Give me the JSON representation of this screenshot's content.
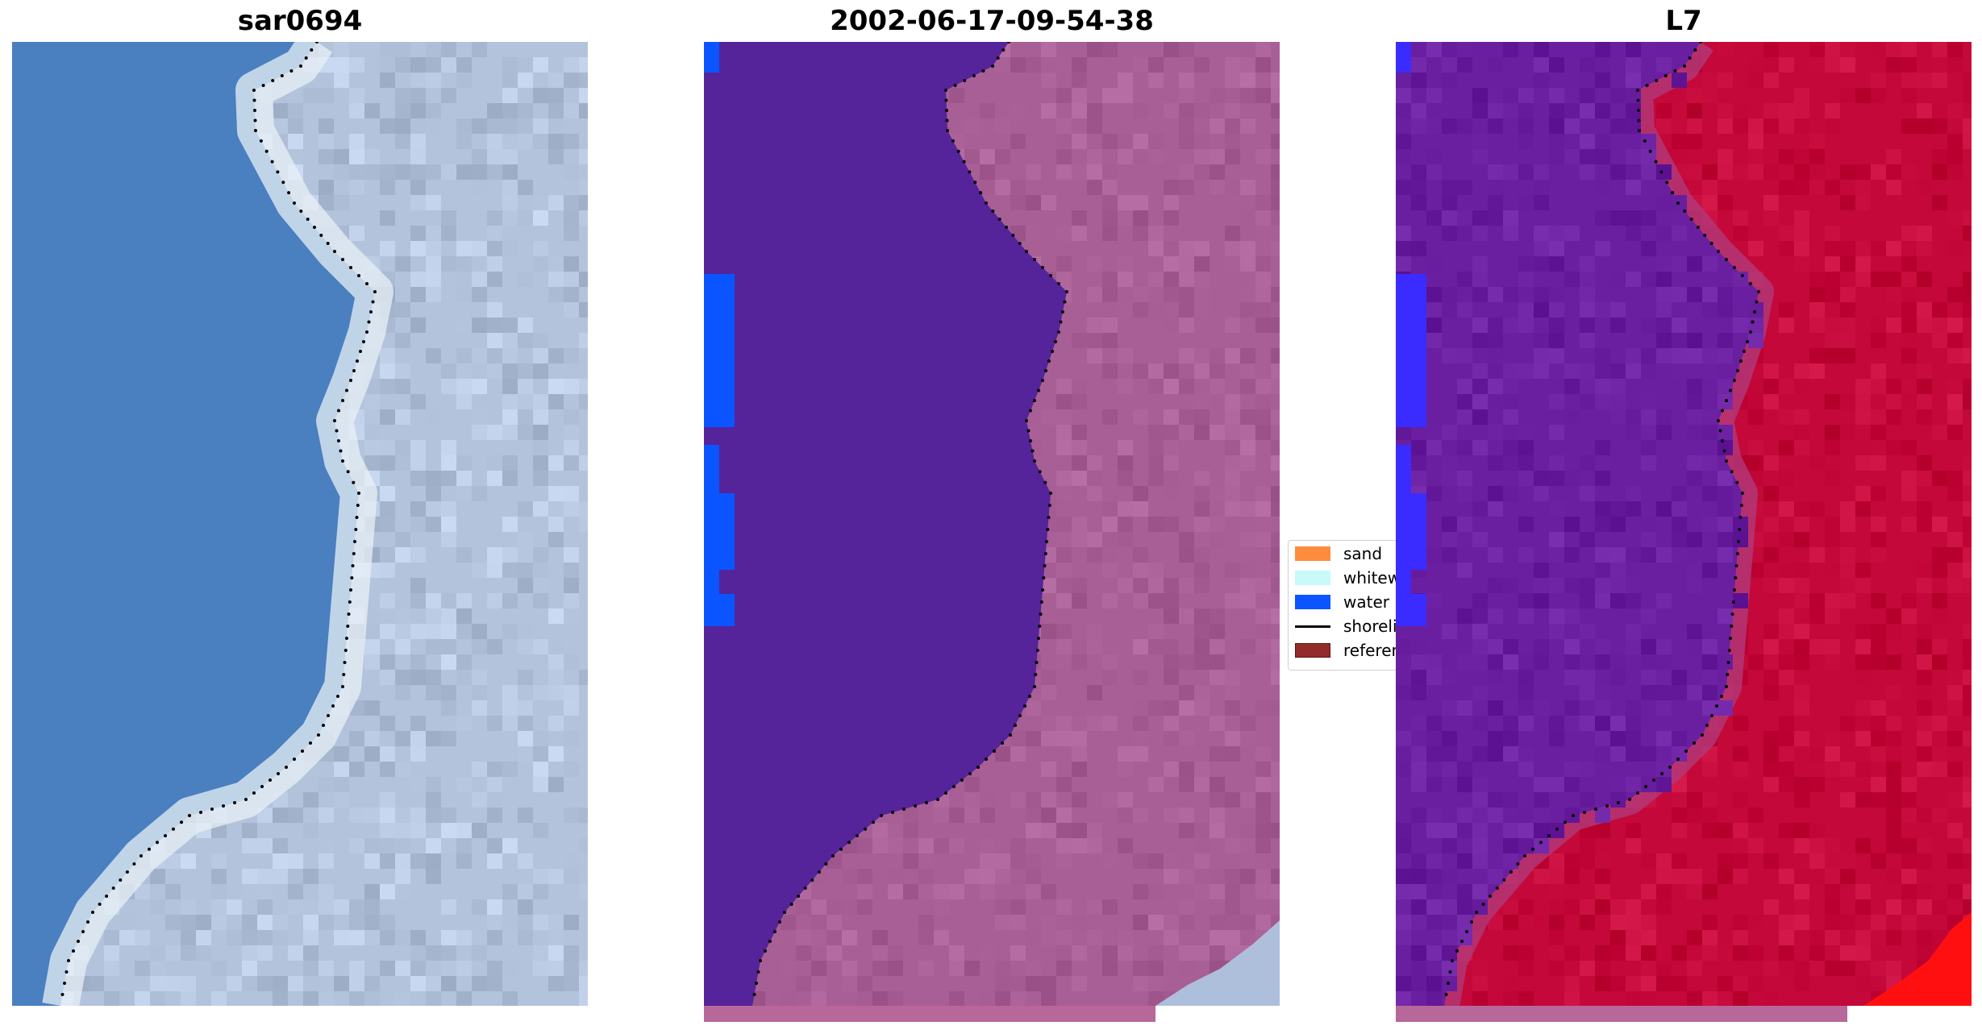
{
  "panels": [
    {
      "title": "sar0694"
    },
    {
      "title": "2002-06-17-09-54-38"
    },
    {
      "title": "L7"
    }
  ],
  "legend": {
    "items": [
      {
        "label": "sand",
        "color": "#ff8c3c"
      },
      {
        "label": "whitewater",
        "color": "#c8fafa"
      },
      {
        "label": "water",
        "color": "#0a55ff"
      },
      {
        "label": "shoreline",
        "color": "#000000"
      },
      {
        "label": "reference",
        "color": "#932b2b"
      }
    ]
  },
  "colors": {
    "rgb_water": "#4a7fc0",
    "rgb_land": "#b4c3dc",
    "class_water_overlay": "#55239a",
    "class_land": "#a85f95",
    "class_water_pixels": "#0a55ff",
    "swir_water": "#6a1fa0",
    "swir_land": "#c4083a",
    "swir_edge": "#ff0f0f",
    "strip": "#b8679a"
  }
}
